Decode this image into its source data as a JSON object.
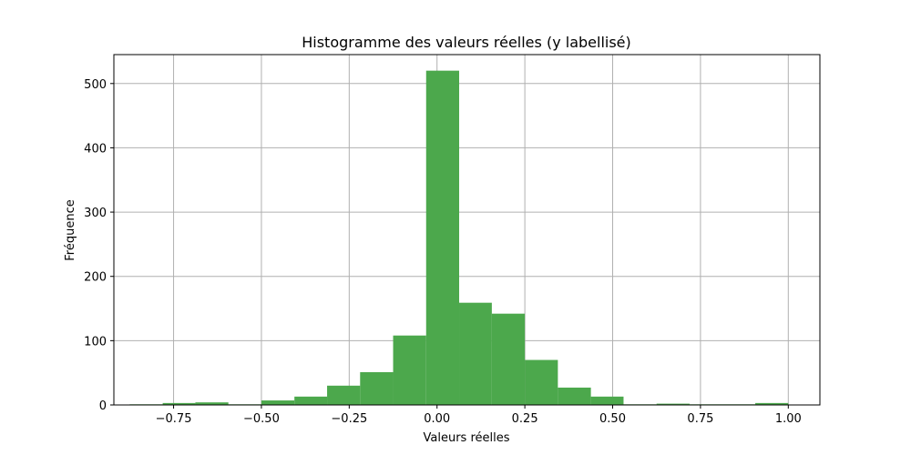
{
  "chart_data": {
    "type": "bar",
    "title": "Histogramme des valeurs réelles (y labellisé)",
    "xlabel": "Valeurs réelles",
    "ylabel": "Fréquence",
    "xlim": [
      -0.92,
      1.09
    ],
    "ylim": [
      0,
      545
    ],
    "x_ticks": [
      -0.75,
      -0.5,
      -0.25,
      0.0,
      0.25,
      0.5,
      0.75,
      1.0
    ],
    "x_tick_labels": [
      "−0.75",
      "−0.50",
      "−0.25",
      "0.00",
      "0.25",
      "0.50",
      "0.75",
      "1.00"
    ],
    "y_ticks": [
      0,
      100,
      200,
      300,
      400,
      500
    ],
    "y_tick_labels": [
      "0",
      "100",
      "200",
      "300",
      "400",
      "500"
    ],
    "grid": true,
    "bar_color": "#4ca84c",
    "bins": [
      {
        "start": -0.875,
        "end": -0.781,
        "value": 1
      },
      {
        "start": -0.781,
        "end": -0.688,
        "value": 3
      },
      {
        "start": -0.688,
        "end": -0.594,
        "value": 4
      },
      {
        "start": -0.594,
        "end": -0.5,
        "value": 1
      },
      {
        "start": -0.5,
        "end": -0.406,
        "value": 7
      },
      {
        "start": -0.406,
        "end": -0.313,
        "value": 13
      },
      {
        "start": -0.313,
        "end": -0.219,
        "value": 30
      },
      {
        "start": -0.219,
        "end": -0.125,
        "value": 51
      },
      {
        "start": -0.125,
        "end": -0.031,
        "value": 108
      },
      {
        "start": -0.031,
        "end": 0.063,
        "value": 520
      },
      {
        "start": 0.063,
        "end": 0.156,
        "value": 159
      },
      {
        "start": 0.156,
        "end": 0.25,
        "value": 142
      },
      {
        "start": 0.25,
        "end": 0.344,
        "value": 70
      },
      {
        "start": 0.344,
        "end": 0.438,
        "value": 27
      },
      {
        "start": 0.438,
        "end": 0.531,
        "value": 13
      },
      {
        "start": 0.531,
        "end": 0.625,
        "value": 1
      },
      {
        "start": 0.625,
        "end": 0.719,
        "value": 2
      },
      {
        "start": 0.719,
        "end": 0.813,
        "value": 1
      },
      {
        "start": 0.813,
        "end": 0.906,
        "value": 1
      },
      {
        "start": 0.906,
        "end": 1.0,
        "value": 3
      }
    ]
  }
}
